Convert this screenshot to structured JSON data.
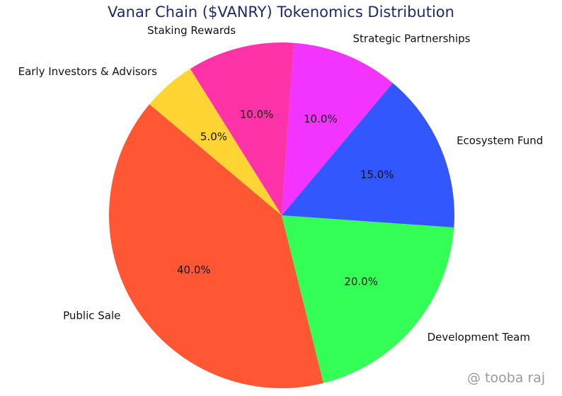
{
  "chart_data": {
    "type": "pie",
    "title": "Vanar Chain ($VANRY) Tokenomics Distribution",
    "categories": [
      "Public Sale",
      "Development Team",
      "Ecosystem Fund",
      "Strategic Partnerships",
      "Staking Rewards",
      "Early Investors & Advisors"
    ],
    "values": [
      40,
      20,
      15,
      10,
      10,
      5
    ],
    "value_labels": [
      "40.0%",
      "20.0%",
      "15.0%",
      "10.0%",
      "10.0%",
      "5.0%"
    ],
    "colors": [
      "#ff5733",
      "#33ff57",
      "#3357ff",
      "#f333ff",
      "#ff33a8",
      "#ffd433"
    ],
    "start_angle": 140,
    "watermark": "@ tooba raj"
  }
}
